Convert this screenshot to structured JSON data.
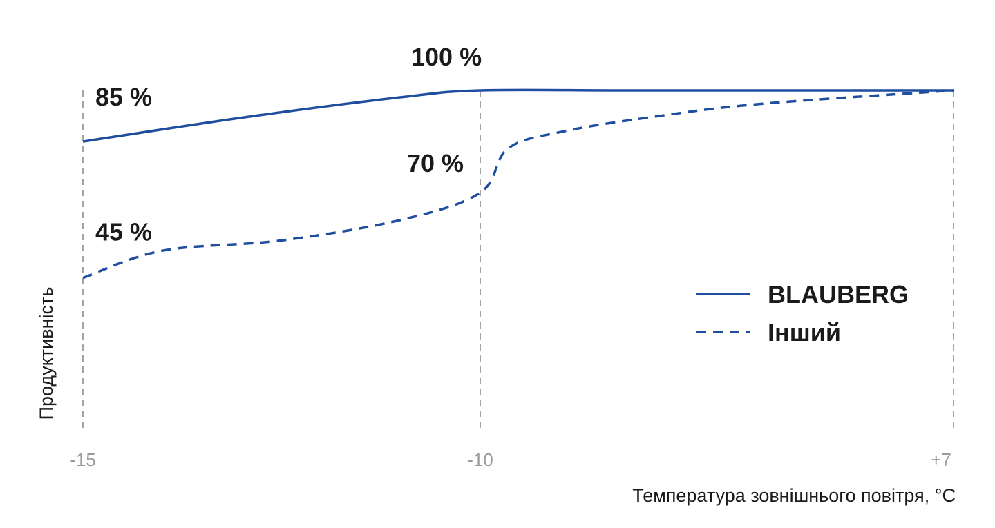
{
  "chart_data": {
    "type": "line",
    "xlabel": "Температура зовнішнього повітря, °C",
    "ylabel": "Продуктивність",
    "x_ticks": [
      "-15",
      "-10",
      "+7"
    ],
    "xlim": [
      -15,
      7
    ],
    "ylim": [
      0,
      100
    ],
    "grid": "vertical dashed at ticks",
    "legend": "right",
    "series": [
      {
        "name": "BLAUBERG",
        "style": "solid",
        "color": "#1f4e9e",
        "x": [
          -15,
          -13,
          -11,
          -10,
          -5,
          0,
          7
        ],
        "y": [
          85,
          92,
          98,
          100,
          100,
          100,
          100
        ]
      },
      {
        "name": "Інший",
        "style": "dashed",
        "color": "#1f4e9e",
        "x": [
          -15,
          -14,
          -12.5,
          -11,
          -10,
          -9,
          -7,
          -4,
          0,
          7
        ],
        "y": [
          45,
          53,
          56,
          62,
          70,
          83,
          88,
          92,
          96,
          100
        ]
      }
    ],
    "annotations": [
      {
        "text": "85 %",
        "x": -15,
        "y": 85
      },
      {
        "text": "100 %",
        "x": -10,
        "y": 100
      },
      {
        "text": "70 %",
        "x": -10,
        "y": 70
      },
      {
        "text": "45 %",
        "x": -15,
        "y": 45
      }
    ]
  }
}
